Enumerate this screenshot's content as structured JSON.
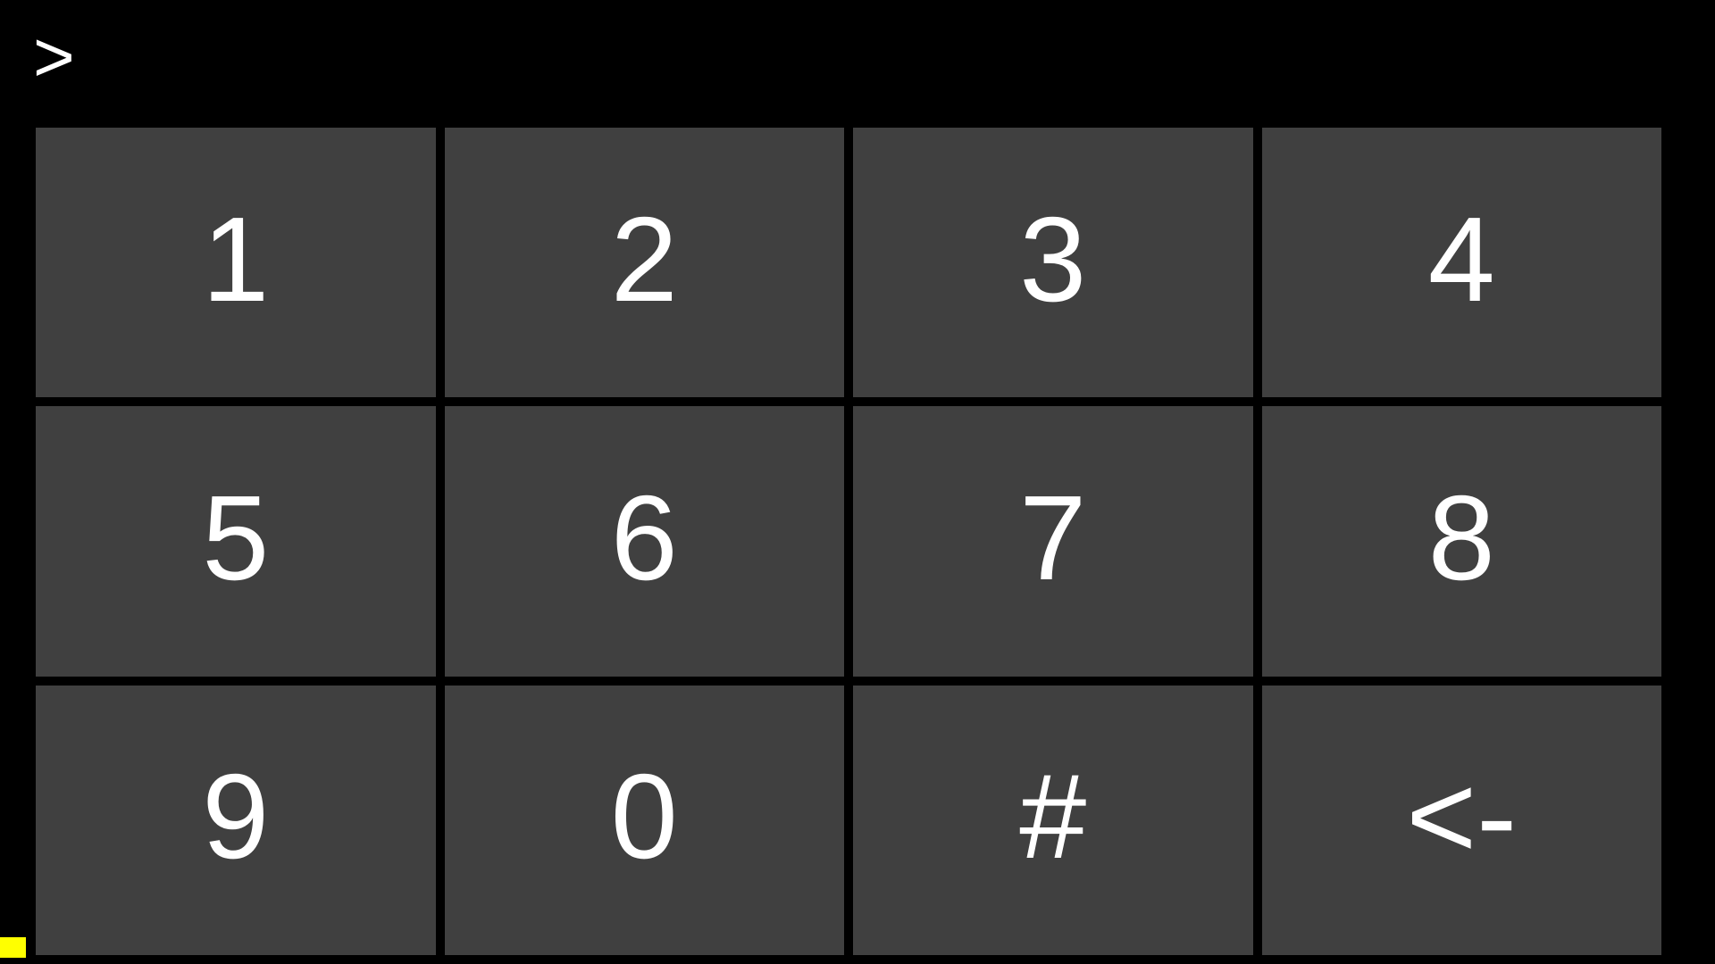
{
  "terminal": {
    "prompt_text": ">"
  },
  "keypad": {
    "buttons": [
      {
        "id": "key-1",
        "label": "1"
      },
      {
        "id": "key-2",
        "label": "2"
      },
      {
        "id": "key-3",
        "label": "3"
      },
      {
        "id": "key-4",
        "label": "4"
      },
      {
        "id": "key-5",
        "label": "5"
      },
      {
        "id": "key-6",
        "label": "6"
      },
      {
        "id": "key-7",
        "label": "7"
      },
      {
        "id": "key-8",
        "label": "8"
      },
      {
        "id": "key-9",
        "label": "9"
      },
      {
        "id": "key-0",
        "label": "0"
      },
      {
        "id": "key-hash",
        "label": "#"
      },
      {
        "id": "key-backspace",
        "label": "<-"
      }
    ]
  },
  "colors": {
    "background": "#000000",
    "button": "#404040",
    "button_text": "#ffffff",
    "prompt_text": "#ffffff",
    "cursor": "#ffff00"
  }
}
